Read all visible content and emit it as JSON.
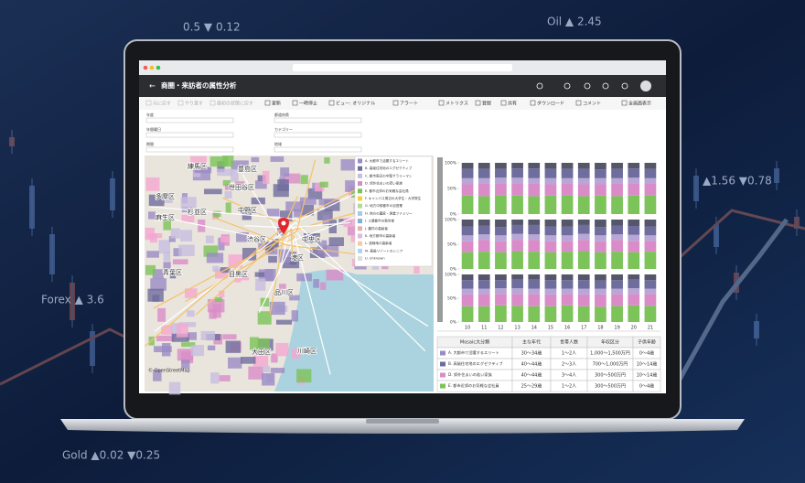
{
  "background_labels": [
    "0.5 ▼ 0.12",
    "Oil ▲ 2.45",
    "Forex ▲ 3.6",
    "Gold ▲0.02 ▼0.25",
    "▲1.56 ▼0.78"
  ],
  "app": {
    "title": "商圏・来訪者の属性分析",
    "toolbar": [
      "元に戻す",
      "やり直す",
      "最初の状態に戻す",
      "更新",
      "一時停止",
      "ビュー: オリジナル",
      "アラート",
      "メトリクス",
      "登録",
      "共有",
      "ダウンロード",
      "コメント",
      "全画面表示"
    ],
    "filters": [
      "年度",
      "年間曜日",
      "期間",
      "都道府県",
      "カテゴリー",
      "地域"
    ],
    "legend": [
      "A. 大都市で活躍するエリート",
      "B. 高級住宅地のエグゼクティブ",
      "C. 都市周辺の中堅サラリーマン",
      "D. 郊外住まいの若い家族",
      "E. 都市近郊のお気軽な会社員",
      "F. キャンパス周辺の大学生・大学院生",
      "G. 地方中核都市の自営業",
      "H. 地方の農家・漁業ファミリー",
      "I. 工業都市の勤労者",
      "J. 農村の高齢者",
      "K. 地方都市の高齢者",
      "L. 過疎地の高齢者",
      "M. 高級リゾートのシニア",
      "U. Unknown"
    ],
    "map_labels": [
      "練馬区",
      "豊島区",
      "世田谷区",
      "杉並区",
      "中野区",
      "渋谷区",
      "港区",
      "中央区",
      "品川区",
      "大田区",
      "目黒区",
      "川崎区",
      "青葉区",
      "麻生区",
      "多摩区"
    ],
    "attribution": "© OpenStreetMap"
  },
  "chart_data": {
    "type": "bar",
    "stacked": true,
    "categories": [
      "10",
      "11",
      "12",
      "13",
      "14",
      "15",
      "16",
      "17",
      "18",
      "19",
      "20",
      "21"
    ],
    "ylim": [
      0,
      100
    ],
    "yticks": [
      {
        "value": 0,
        "label": "0%"
      },
      {
        "value": 50,
        "label": "50%"
      },
      {
        "value": 100,
        "label": "100%"
      }
    ],
    "panels": [
      {
        "series": [
          {
            "color": "#7cc35a",
            "values": [
              36,
              35,
              37,
              36,
              35,
              36,
              37,
              35,
              36,
              35,
              36,
              37
            ]
          },
          {
            "color": "#d98cc8",
            "values": [
              22,
              24,
              22,
              23,
              24,
              22,
              22,
              23,
              22,
              24,
              23,
              22
            ]
          },
          {
            "color": "#b7a6d6",
            "values": [
              12,
              11,
              12,
              12,
              11,
              12,
              11,
              12,
              12,
              11,
              12,
              11
            ]
          },
          {
            "color": "#6f6c9e",
            "values": [
              18,
              18,
              17,
              18,
              19,
              18,
              18,
              18,
              17,
              18,
              18,
              18
            ]
          },
          {
            "color": "#55566a",
            "values": [
              12,
              12,
              12,
              11,
              11,
              12,
              12,
              12,
              13,
              12,
              11,
              12
            ]
          }
        ]
      },
      {
        "series": [
          {
            "color": "#7cc35a",
            "values": [
              34,
              35,
              34,
              36,
              35,
              34,
              35,
              36,
              34,
              35,
              34,
              35
            ]
          },
          {
            "color": "#d98cc8",
            "values": [
              22,
              24,
              22,
              23,
              24,
              22,
              22,
              23,
              22,
              24,
              23,
              22
            ]
          },
          {
            "color": "#b7a6d6",
            "values": [
              12,
              11,
              12,
              12,
              11,
              12,
              11,
              12,
              12,
              11,
              12,
              11
            ]
          },
          {
            "color": "#6f6c9e",
            "values": [
              18,
              18,
              17,
              18,
              19,
              18,
              18,
              18,
              17,
              18,
              18,
              18
            ]
          },
          {
            "color": "#55566a",
            "values": [
              14,
              12,
              15,
              11,
              11,
              14,
              14,
              11,
              15,
              12,
              13,
              14
            ]
          }
        ]
      },
      {
        "series": [
          {
            "color": "#7cc35a",
            "values": [
              33,
              33,
              35,
              34,
              33,
              33,
              35,
              33,
              32,
              34,
              35,
              34
            ]
          },
          {
            "color": "#d98cc8",
            "values": [
              25,
              26,
              24,
              25,
              26,
              25,
              24,
              25,
              26,
              25,
              24,
              25
            ]
          },
          {
            "color": "#b7a6d6",
            "values": [
              12,
              11,
              12,
              12,
              11,
              12,
              11,
              12,
              12,
              11,
              12,
              11
            ]
          },
          {
            "color": "#6f6c9e",
            "values": [
              18,
              18,
              17,
              18,
              19,
              18,
              18,
              18,
              17,
              18,
              18,
              18
            ]
          },
          {
            "color": "#55566a",
            "values": [
              12,
              12,
              12,
              11,
              11,
              12,
              12,
              12,
              13,
              12,
              11,
              12
            ]
          }
        ]
      }
    ]
  },
  "table": {
    "headers": [
      "Mosaic大分類",
      "主な年代",
      "世帯人数",
      "年収区分",
      "子供年齢"
    ],
    "rows": [
      [
        "A. 大都市で活躍するエリート",
        "30～34歳",
        "1～2人",
        "1,000～1,500万円",
        "0～4歳"
      ],
      [
        "B. 高級住宅地のエグゼクティブ",
        "40～44歳",
        "2～3人",
        "700～1,000万円",
        "10～14歳"
      ],
      [
        "D. 郊外住まいの若い家族",
        "40～44歳",
        "3～4人",
        "300～500万円",
        "10～14歳"
      ],
      [
        "E. 都市近郊のお気軽な会社員",
        "25～29歳",
        "1～2人",
        "300～500万円",
        "0～4歳"
      ]
    ]
  }
}
